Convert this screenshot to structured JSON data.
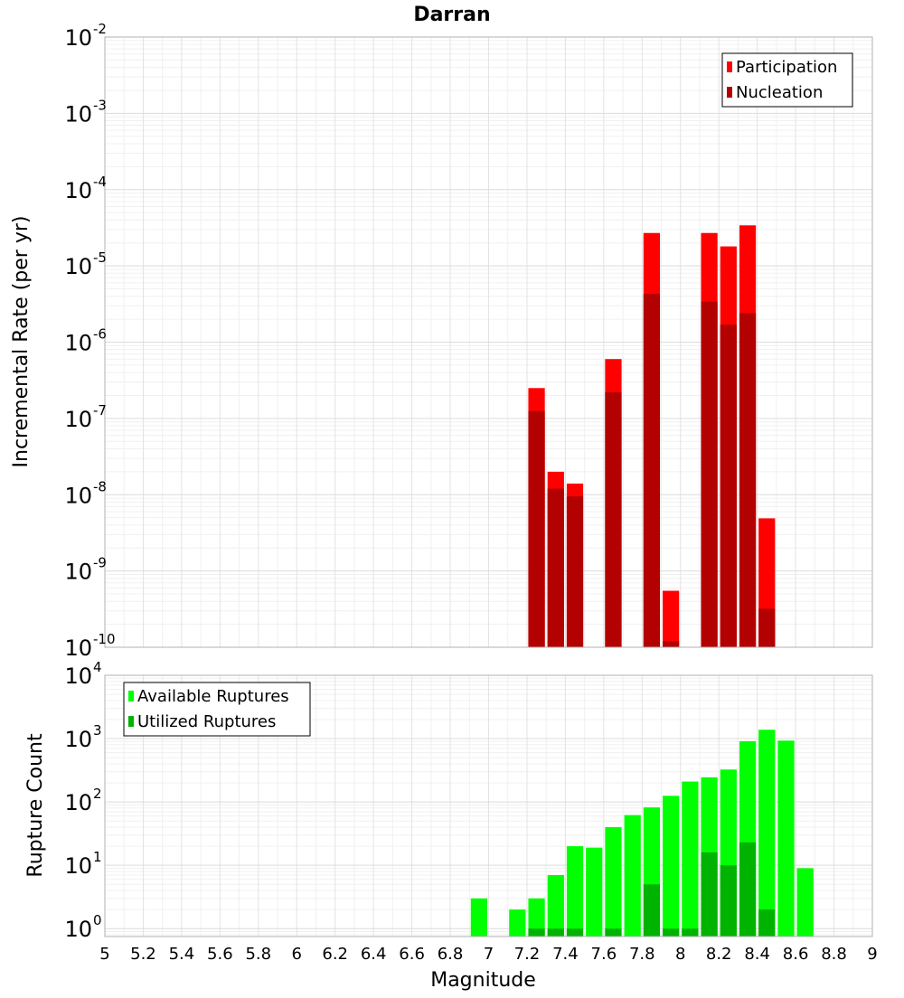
{
  "chart_data": [
    {
      "type": "bar",
      "title": "Darran",
      "ylabel": "Incremental Rate (per yr)",
      "xlabel": "",
      "y_scale": "log",
      "ylim": [
        1e-10,
        0.01
      ],
      "xlim": [
        5,
        9
      ],
      "bar_width": 0.1,
      "y_ticks": [
        {
          "base": "10",
          "exp": "-10",
          "value": 1e-10
        },
        {
          "base": "10",
          "exp": "-9",
          "value": 1e-09
        },
        {
          "base": "10",
          "exp": "-8",
          "value": 1e-08
        },
        {
          "base": "10",
          "exp": "-7",
          "value": 1e-07
        },
        {
          "base": "10",
          "exp": "-6",
          "value": 1e-06
        },
        {
          "base": "10",
          "exp": "-5",
          "value": 1e-05
        },
        {
          "base": "10",
          "exp": "-4",
          "value": 0.0001
        },
        {
          "base": "10",
          "exp": "-3",
          "value": 0.001
        },
        {
          "base": "10",
          "exp": "-2",
          "value": 0.01
        }
      ],
      "legend_position": "top-right",
      "grid": true,
      "series": [
        {
          "name": "Participation",
          "color": "#ff0000",
          "points": [
            {
              "x": 7.25,
              "y": 2.5e-07
            },
            {
              "x": 7.35,
              "y": 2e-08
            },
            {
              "x": 7.45,
              "y": 1.4e-08
            },
            {
              "x": 7.65,
              "y": 6e-07
            },
            {
              "x": 7.85,
              "y": 2.7e-05
            },
            {
              "x": 7.95,
              "y": 5.5e-10
            },
            {
              "x": 8.15,
              "y": 2.7e-05
            },
            {
              "x": 8.25,
              "y": 1.8e-05
            },
            {
              "x": 8.35,
              "y": 3.4e-05
            },
            {
              "x": 8.45,
              "y": 4.9e-09
            }
          ]
        },
        {
          "name": "Nucleation",
          "color": "#b30000",
          "points": [
            {
              "x": 7.25,
              "y": 1.25e-07
            },
            {
              "x": 7.35,
              "y": 1.2e-08
            },
            {
              "x": 7.45,
              "y": 9.5e-09
            },
            {
              "x": 7.65,
              "y": 2.2e-07
            },
            {
              "x": 7.85,
              "y": 4.3e-06
            },
            {
              "x": 7.95,
              "y": 1.2e-10
            },
            {
              "x": 8.15,
              "y": 3.4e-06
            },
            {
              "x": 8.25,
              "y": 1.7e-06
            },
            {
              "x": 8.35,
              "y": 2.4e-06
            },
            {
              "x": 8.45,
              "y": 3.2e-10
            }
          ]
        }
      ]
    },
    {
      "type": "bar",
      "title": "",
      "ylabel": "Rupture Count",
      "xlabel": "Magnitude",
      "y_scale": "log",
      "ylim": [
        0.75,
        10000
      ],
      "xlim": [
        5,
        9
      ],
      "bar_width": 0.1,
      "y_ticks": [
        {
          "base": "10",
          "exp": "0",
          "value": 1
        },
        {
          "base": "10",
          "exp": "1",
          "value": 10
        },
        {
          "base": "10",
          "exp": "2",
          "value": 100
        },
        {
          "base": "10",
          "exp": "3",
          "value": 1000
        },
        {
          "base": "10",
          "exp": "4",
          "value": 10000
        }
      ],
      "x_ticks": [
        "5",
        "5.2",
        "5.4",
        "5.6",
        "5.8",
        "6",
        "6.2",
        "6.4",
        "6.6",
        "6.8",
        "7",
        "7.2",
        "7.4",
        "7.6",
        "7.8",
        "8",
        "8.2",
        "8.4",
        "8.6",
        "8.8",
        "9"
      ],
      "legend_position": "top-left",
      "grid": true,
      "series": [
        {
          "name": "Available Ruptures",
          "color": "#00ff00",
          "points": [
            {
              "x": 6.95,
              "y": 3
            },
            {
              "x": 7.15,
              "y": 2
            },
            {
              "x": 7.25,
              "y": 3
            },
            {
              "x": 7.35,
              "y": 7
            },
            {
              "x": 7.45,
              "y": 20
            },
            {
              "x": 7.55,
              "y": 19
            },
            {
              "x": 7.65,
              "y": 40
            },
            {
              "x": 7.75,
              "y": 62
            },
            {
              "x": 7.85,
              "y": 82
            },
            {
              "x": 7.95,
              "y": 125
            },
            {
              "x": 8.05,
              "y": 210
            },
            {
              "x": 8.15,
              "y": 245
            },
            {
              "x": 8.25,
              "y": 325
            },
            {
              "x": 8.35,
              "y": 910
            },
            {
              "x": 8.45,
              "y": 1380
            },
            {
              "x": 8.55,
              "y": 930
            },
            {
              "x": 8.65,
              "y": 9
            }
          ]
        },
        {
          "name": "Utilized Ruptures",
          "color": "#00b300",
          "points": [
            {
              "x": 7.25,
              "y": 1
            },
            {
              "x": 7.35,
              "y": 1
            },
            {
              "x": 7.45,
              "y": 1
            },
            {
              "x": 7.65,
              "y": 1
            },
            {
              "x": 7.85,
              "y": 5
            },
            {
              "x": 7.95,
              "y": 1
            },
            {
              "x": 8.05,
              "y": 1
            },
            {
              "x": 8.15,
              "y": 16
            },
            {
              "x": 8.25,
              "y": 10
            },
            {
              "x": 8.35,
              "y": 23
            },
            {
              "x": 8.45,
              "y": 2
            }
          ]
        }
      ]
    }
  ]
}
